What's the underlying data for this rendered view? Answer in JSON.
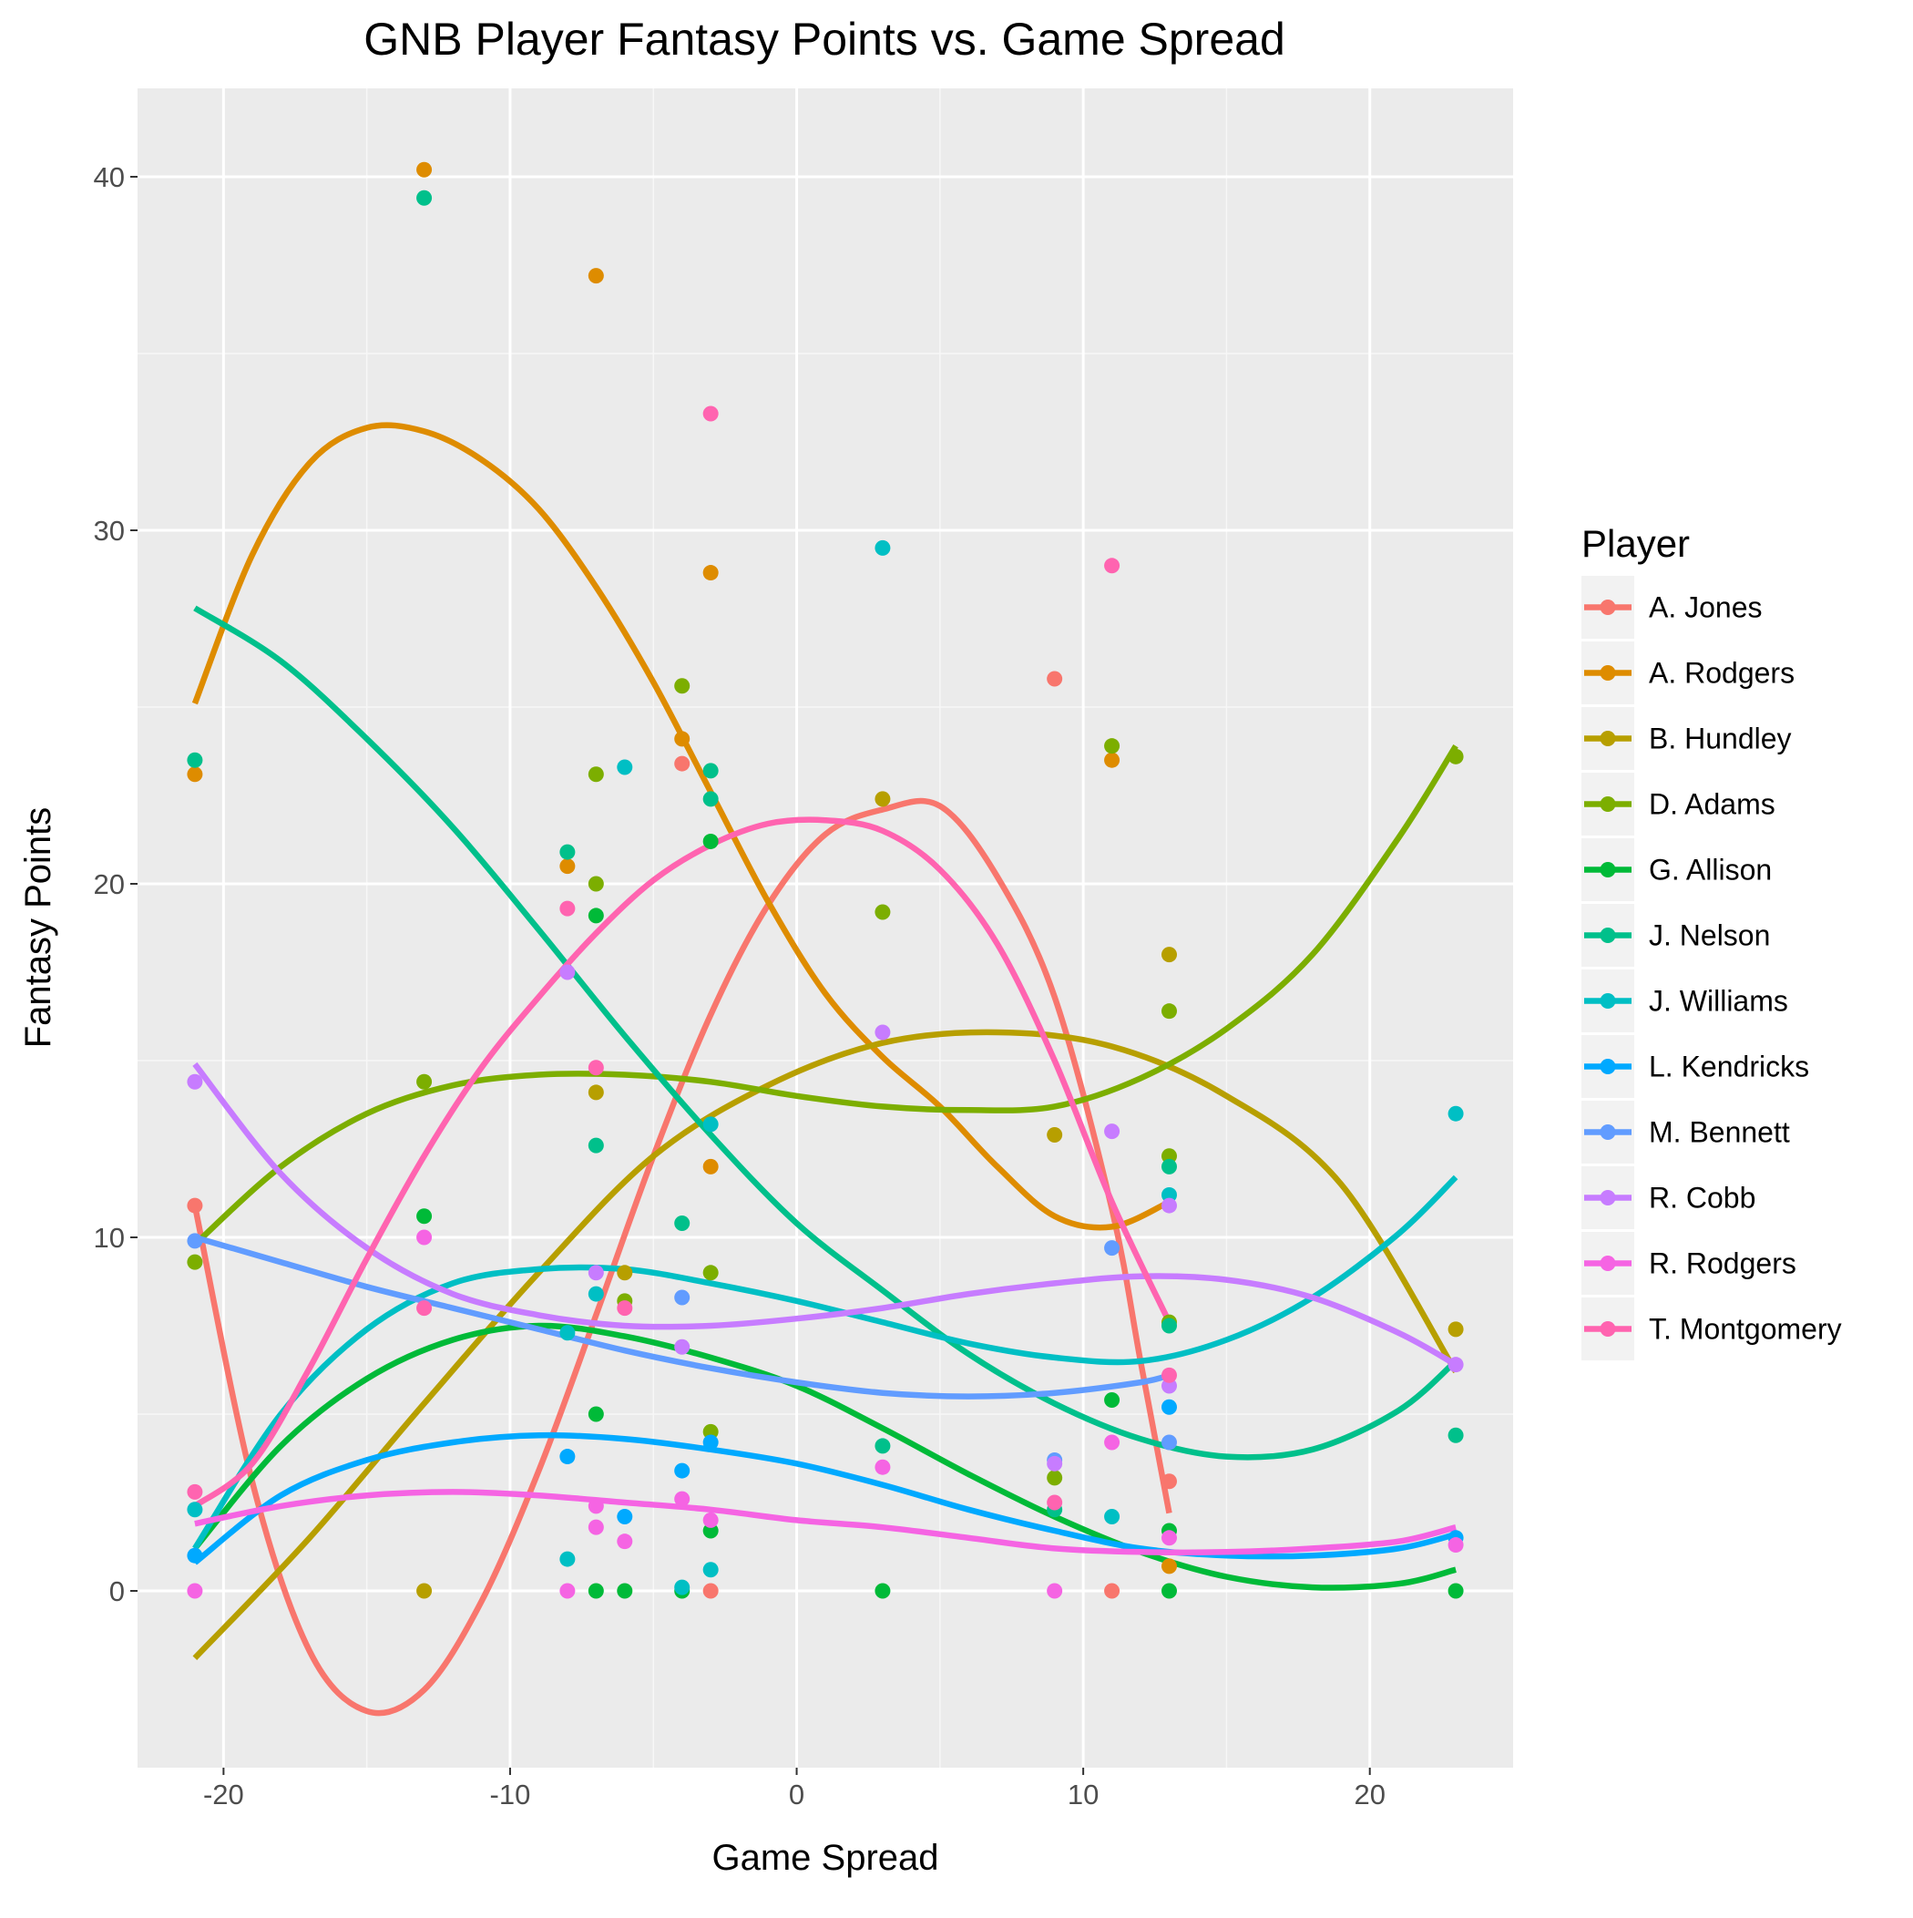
{
  "chart_data": {
    "type": "scatter",
    "title": "GNB Player Fantasy Points vs. Game Spread",
    "xlabel": "Game Spread",
    "ylabel": "Fantasy Points",
    "xlim": [
      -23,
      25
    ],
    "ylim": [
      -5,
      42.5
    ],
    "x_ticks": [
      -20,
      -10,
      0,
      10,
      20
    ],
    "x_tick_labels": [
      "-20",
      "-10",
      "0",
      "10",
      "20"
    ],
    "y_ticks": [
      0,
      10,
      20,
      30,
      40
    ],
    "y_tick_labels": [
      "0",
      "10",
      "20",
      "30",
      "40"
    ],
    "grid": true,
    "legend": {
      "title": "Player",
      "position": "right"
    },
    "series": [
      {
        "name": "A. Jones",
        "color": "#F8766D",
        "points": [
          [
            -21,
            10.9
          ],
          [
            -4,
            23.4
          ],
          [
            -3,
            0
          ],
          [
            9,
            25.8
          ],
          [
            11,
            0
          ],
          [
            13,
            3.1
          ]
        ],
        "curve": [
          [
            -21,
            10.9
          ],
          [
            -19,
            3.1
          ],
          [
            -17,
            -1.7
          ],
          [
            -15,
            -3.4
          ],
          [
            -13,
            -2.8
          ],
          [
            -11,
            -0.3
          ],
          [
            -9,
            3.4
          ],
          [
            -7,
            7.8
          ],
          [
            -5,
            12.3
          ],
          [
            -3,
            16.3
          ],
          [
            -1,
            19.4
          ],
          [
            1,
            21.4
          ],
          [
            3,
            22.1
          ],
          [
            5,
            22.2
          ],
          [
            7,
            20.2
          ],
          [
            9,
            16.8
          ],
          [
            11,
            10.8
          ],
          [
            12,
            6.5
          ],
          [
            13,
            2.2
          ]
        ]
      },
      {
        "name": "A. Rodgers",
        "color": "#DE8C00",
        "points": [
          [
            -21,
            23.1
          ],
          [
            -13,
            40.2
          ],
          [
            -8,
            20.5
          ],
          [
            -7,
            37.2
          ],
          [
            -4,
            24.1
          ],
          [
            -3,
            28.8
          ],
          [
            -3,
            12
          ],
          [
            11,
            23.5
          ],
          [
            13,
            0.7
          ]
        ],
        "curve": [
          [
            -21,
            25.1
          ],
          [
            -19,
            29.3
          ],
          [
            -17,
            31.9
          ],
          [
            -15,
            32.9
          ],
          [
            -13,
            32.8
          ],
          [
            -11,
            32
          ],
          [
            -9,
            30.6
          ],
          [
            -7,
            28.4
          ],
          [
            -5,
            25.7
          ],
          [
            -3,
            22.6
          ],
          [
            -1,
            19.5
          ],
          [
            1,
            16.9
          ],
          [
            3,
            15.1
          ],
          [
            5,
            13.7
          ],
          [
            7,
            12
          ],
          [
            9,
            10.6
          ],
          [
            11,
            10.3
          ],
          [
            13,
            11
          ]
        ]
      },
      {
        "name": "B. Hundley",
        "color": "#B79F00",
        "points": [
          [
            -13,
            0
          ],
          [
            -7,
            14.1
          ],
          [
            -6,
            9
          ],
          [
            3,
            22.4
          ],
          [
            9,
            12.9
          ],
          [
            13,
            18
          ],
          [
            23,
            7.4
          ]
        ],
        "curve": [
          [
            -21,
            -1.9
          ],
          [
            -17,
            1.5
          ],
          [
            -13,
            5.3
          ],
          [
            -9,
            9
          ],
          [
            -5,
            12.3
          ],
          [
            -1,
            14.3
          ],
          [
            3,
            15.5
          ],
          [
            7,
            15.8
          ],
          [
            11,
            15.4
          ],
          [
            15,
            14
          ],
          [
            19,
            11.5
          ],
          [
            23,
            6.2
          ]
        ]
      },
      {
        "name": "D. Adams",
        "color": "#7CAE00",
        "points": [
          [
            -21,
            9.3
          ],
          [
            -13,
            14.4
          ],
          [
            -7,
            23.1
          ],
          [
            -7,
            20
          ],
          [
            -6,
            8.2
          ],
          [
            -4,
            25.6
          ],
          [
            -3,
            9
          ],
          [
            -3,
            4.5
          ],
          [
            3,
            19.2
          ],
          [
            9,
            3.2
          ],
          [
            11,
            23.9
          ],
          [
            13,
            16.4
          ],
          [
            13,
            12.3
          ],
          [
            13,
            7.6
          ],
          [
            23,
            23.6
          ]
        ],
        "curve": [
          [
            -21,
            9.8
          ],
          [
            -18,
            12
          ],
          [
            -15,
            13.5
          ],
          [
            -12,
            14.3
          ],
          [
            -9,
            14.6
          ],
          [
            -6,
            14.6
          ],
          [
            -3,
            14.4
          ],
          [
            0,
            14
          ],
          [
            3,
            13.7
          ],
          [
            6,
            13.6
          ],
          [
            9,
            13.7
          ],
          [
            12,
            14.5
          ],
          [
            15,
            15.9
          ],
          [
            18,
            18
          ],
          [
            21,
            21.3
          ],
          [
            23,
            23.9
          ]
        ]
      },
      {
        "name": "G. Allison",
        "color": "#00BA38",
        "points": [
          [
            -13,
            10.6
          ],
          [
            -7,
            19.1
          ],
          [
            -7,
            5
          ],
          [
            -7,
            0
          ],
          [
            -6,
            0
          ],
          [
            -4,
            0
          ],
          [
            -3,
            21.2
          ],
          [
            -3,
            1.7
          ],
          [
            3,
            0
          ],
          [
            11,
            5.4
          ],
          [
            13,
            1.7
          ],
          [
            13,
            0
          ],
          [
            23,
            0
          ]
        ],
        "curve": [
          [
            -21,
            1.2
          ],
          [
            -18,
            4.1
          ],
          [
            -15,
            6
          ],
          [
            -12,
            7.1
          ],
          [
            -9,
            7.5
          ],
          [
            -6,
            7.2
          ],
          [
            -3,
            6.6
          ],
          [
            0,
            5.8
          ],
          [
            3,
            4.6
          ],
          [
            6,
            3.3
          ],
          [
            9,
            2.1
          ],
          [
            12,
            1.1
          ],
          [
            15,
            0.4
          ],
          [
            18,
            0.1
          ],
          [
            21,
            0.2
          ],
          [
            23,
            0.6
          ]
        ]
      },
      {
        "name": "J. Nelson",
        "color": "#00C08B",
        "points": [
          [
            -21,
            23.5
          ],
          [
            -13,
            39.4
          ],
          [
            -8,
            20.9
          ],
          [
            -7,
            12.6
          ],
          [
            -4,
            10.4
          ],
          [
            -3,
            23.2
          ],
          [
            -3,
            22.4
          ],
          [
            3,
            4.1
          ],
          [
            9,
            2.3
          ],
          [
            13,
            12
          ],
          [
            13,
            7.5
          ],
          [
            23,
            4.4
          ]
        ],
        "curve": [
          [
            -21,
            27.8
          ],
          [
            -18,
            26.3
          ],
          [
            -15,
            24.1
          ],
          [
            -12,
            21.6
          ],
          [
            -9,
            18.7
          ],
          [
            -6,
            15.7
          ],
          [
            -3,
            12.9
          ],
          [
            0,
            10.4
          ],
          [
            3,
            8.5
          ],
          [
            6,
            6.7
          ],
          [
            9,
            5.3
          ],
          [
            12,
            4.3
          ],
          [
            15,
            3.8
          ],
          [
            18,
            4
          ],
          [
            21,
            5.1
          ],
          [
            23,
            6.5
          ]
        ]
      },
      {
        "name": "J. Williams",
        "color": "#00BFC4",
        "points": [
          [
            -21,
            2.3
          ],
          [
            -8,
            7.3
          ],
          [
            -8,
            0.9
          ],
          [
            -7,
            8.4
          ],
          [
            -6,
            23.3
          ],
          [
            -4,
            0.1
          ],
          [
            -3,
            13.2
          ],
          [
            -3,
            0.6
          ],
          [
            3,
            29.5
          ],
          [
            11,
            2.1
          ],
          [
            13,
            11.2
          ],
          [
            23,
            13.5
          ]
        ],
        "curve": [
          [
            -21,
            1.2
          ],
          [
            -18,
            5
          ],
          [
            -15,
            7.4
          ],
          [
            -12,
            8.7
          ],
          [
            -9,
            9.1
          ],
          [
            -6,
            9.1
          ],
          [
            -3,
            8.7
          ],
          [
            0,
            8.2
          ],
          [
            3,
            7.6
          ],
          [
            6,
            7
          ],
          [
            9,
            6.6
          ],
          [
            12,
            6.5
          ],
          [
            15,
            7.1
          ],
          [
            18,
            8.3
          ],
          [
            21,
            10.1
          ],
          [
            23,
            11.7
          ]
        ]
      },
      {
        "name": "L. Kendricks",
        "color": "#00A9FF",
        "points": [
          [
            -21,
            1
          ],
          [
            -8,
            3.8
          ],
          [
            -6,
            2.1
          ],
          [
            -4,
            3.4
          ],
          [
            -3,
            4.2
          ],
          [
            13,
            5.2
          ],
          [
            23,
            1.5
          ]
        ],
        "curve": [
          [
            -21,
            0.8
          ],
          [
            -18,
            2.7
          ],
          [
            -15,
            3.7
          ],
          [
            -12,
            4.2
          ],
          [
            -9,
            4.4
          ],
          [
            -6,
            4.3
          ],
          [
            -3,
            4
          ],
          [
            0,
            3.6
          ],
          [
            3,
            3
          ],
          [
            6,
            2.3
          ],
          [
            9,
            1.7
          ],
          [
            12,
            1.2
          ],
          [
            15,
            1
          ],
          [
            18,
            1
          ],
          [
            21,
            1.2
          ],
          [
            23,
            1.6
          ]
        ]
      },
      {
        "name": "M. Bennett",
        "color": "#619CFF",
        "points": [
          [
            -21,
            9.9
          ],
          [
            -4,
            8.3
          ],
          [
            9,
            3.7
          ],
          [
            11,
            9.7
          ],
          [
            13,
            4.2
          ]
        ],
        "curve": [
          [
            -21,
            10
          ],
          [
            -18,
            9.3
          ],
          [
            -15,
            8.6
          ],
          [
            -12,
            8
          ],
          [
            -9,
            7.4
          ],
          [
            -6,
            6.8
          ],
          [
            -3,
            6.3
          ],
          [
            0,
            5.9
          ],
          [
            3,
            5.6
          ],
          [
            6,
            5.5
          ],
          [
            9,
            5.6
          ],
          [
            12,
            5.9
          ],
          [
            13,
            6.1
          ]
        ]
      },
      {
        "name": "R. Cobb",
        "color": "#C77CFF",
        "points": [
          [
            -21,
            14.4
          ],
          [
            -8,
            17.5
          ],
          [
            -7,
            9
          ],
          [
            -4,
            6.9
          ],
          [
            3,
            15.8
          ],
          [
            9,
            3.6
          ],
          [
            11,
            13
          ],
          [
            13,
            10.9
          ],
          [
            13,
            5.8
          ],
          [
            23,
            6.4
          ]
        ],
        "curve": [
          [
            -21,
            14.9
          ],
          [
            -18,
            11.8
          ],
          [
            -15,
            9.7
          ],
          [
            -12,
            8.4
          ],
          [
            -9,
            7.8
          ],
          [
            -6,
            7.5
          ],
          [
            -3,
            7.5
          ],
          [
            0,
            7.7
          ],
          [
            3,
            8
          ],
          [
            6,
            8.4
          ],
          [
            9,
            8.7
          ],
          [
            12,
            8.9
          ],
          [
            15,
            8.8
          ],
          [
            18,
            8.3
          ],
          [
            21,
            7.3
          ],
          [
            23,
            6.4
          ]
        ]
      },
      {
        "name": "R. Rodgers",
        "color": "#F564E3",
        "points": [
          [
            -21,
            0
          ],
          [
            -13,
            10
          ],
          [
            -8,
            0
          ],
          [
            -7,
            2.4
          ],
          [
            -7,
            1.8
          ],
          [
            -6,
            1.4
          ],
          [
            -4,
            2.6
          ],
          [
            -3,
            2
          ],
          [
            3,
            3.5
          ],
          [
            9,
            0
          ],
          [
            11,
            4.2
          ],
          [
            13,
            1.5
          ],
          [
            23,
            1.3
          ]
        ],
        "curve": [
          [
            -21,
            1.9
          ],
          [
            -18,
            2.4
          ],
          [
            -15,
            2.7
          ],
          [
            -12,
            2.8
          ],
          [
            -9,
            2.7
          ],
          [
            -6,
            2.5
          ],
          [
            -3,
            2.3
          ],
          [
            0,
            2
          ],
          [
            3,
            1.8
          ],
          [
            6,
            1.5
          ],
          [
            9,
            1.2
          ],
          [
            12,
            1.1
          ],
          [
            15,
            1.1
          ],
          [
            18,
            1.2
          ],
          [
            21,
            1.4
          ],
          [
            23,
            1.8
          ]
        ]
      },
      {
        "name": "T. Montgomery",
        "color": "#FF64B0",
        "points": [
          [
            -21,
            2.8
          ],
          [
            -13,
            8
          ],
          [
            -8,
            19.3
          ],
          [
            -7,
            14.8
          ],
          [
            -6,
            8
          ],
          [
            -3,
            33.3
          ],
          [
            9,
            2.5
          ],
          [
            11,
            29
          ],
          [
            13,
            6.1
          ]
        ],
        "curve": [
          [
            -21,
            2.4
          ],
          [
            -19,
            3.6
          ],
          [
            -17,
            6.3
          ],
          [
            -15,
            9.4
          ],
          [
            -13,
            12.3
          ],
          [
            -11,
            14.8
          ],
          [
            -9,
            16.8
          ],
          [
            -7,
            18.6
          ],
          [
            -5,
            20.1
          ],
          [
            -3,
            21.1
          ],
          [
            -1,
            21.7
          ],
          [
            1,
            21.8
          ],
          [
            3,
            21.5
          ],
          [
            5,
            20.4
          ],
          [
            7,
            18.3
          ],
          [
            9,
            15
          ],
          [
            11,
            11
          ],
          [
            13,
            7.6
          ]
        ]
      }
    ]
  }
}
